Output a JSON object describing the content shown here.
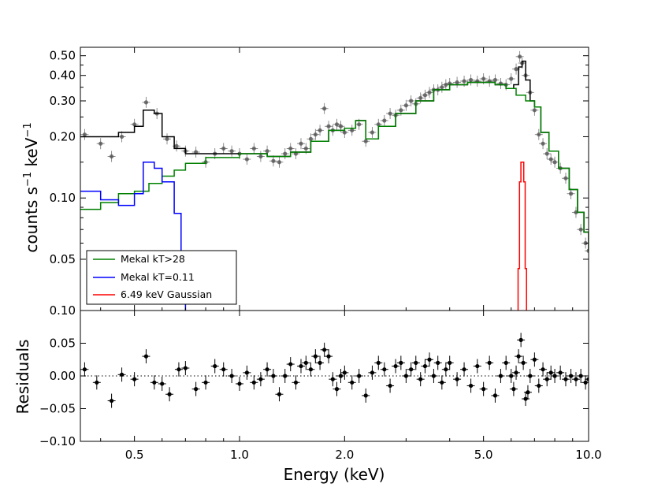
{
  "chart_data": {
    "type": "line",
    "xlabel": "Energy (keV)",
    "x_scale": "log",
    "xlim": [
      0.35,
      10.0
    ],
    "x_ticks": [
      {
        "value": 0.5,
        "label": "0.5"
      },
      {
        "value": 1.0,
        "label": "1.0"
      },
      {
        "value": 2.0,
        "label": "2.0"
      },
      {
        "value": 5.0,
        "label": "5.0"
      },
      {
        "value": 10.0,
        "label": "10.0"
      }
    ],
    "top_panel": {
      "ylabel": "counts s",
      "ylabel_sup1": "−1",
      "ylabel_mid": " keV",
      "ylabel_sup2": "−1",
      "y_scale": "log",
      "ylim": [
        0.028,
        0.55
      ],
      "y_ticks": [
        {
          "value": 0.5,
          "label": "0.50"
        },
        {
          "value": 0.4,
          "label": "0.40"
        },
        {
          "value": 0.3,
          "label": "0.30"
        },
        {
          "value": 0.2,
          "label": "0.20"
        },
        {
          "value": 0.1,
          "label": "0.10"
        },
        {
          "value": 0.05,
          "label": "0.05"
        }
      ],
      "bottom_tick_label": "0.10",
      "legend": {
        "position": "lower-left",
        "entries": [
          {
            "label": "Mekal kT>28",
            "color": "#008000"
          },
          {
            "label": "Mekal kT=0.11",
            "color": "#0000ff"
          },
          {
            "label": "6.49 keV Gaussian",
            "color": "#ff0000"
          }
        ]
      },
      "series": [
        {
          "name": "Total model",
          "color": "#000000",
          "kind": "step",
          "points": [
            [
              0.35,
              0.2
            ],
            [
              0.4,
              0.2
            ],
            [
              0.45,
              0.21
            ],
            [
              0.5,
              0.225
            ],
            [
              0.53,
              0.27
            ],
            [
              0.57,
              0.26
            ],
            [
              0.6,
              0.2
            ],
            [
              0.65,
              0.175
            ],
            [
              0.7,
              0.165
            ],
            [
              0.8,
              0.165
            ],
            [
              1.0,
              0.165
            ],
            [
              1.2,
              0.16
            ],
            [
              1.4,
              0.168
            ],
            [
              1.6,
              0.19
            ],
            [
              1.8,
              0.215
            ],
            [
              2.0,
              0.22
            ],
            [
              2.15,
              0.24
            ],
            [
              2.3,
              0.195
            ],
            [
              2.5,
              0.225
            ],
            [
              2.8,
              0.26
            ],
            [
              3.2,
              0.3
            ],
            [
              3.6,
              0.34
            ],
            [
              4.0,
              0.36
            ],
            [
              4.5,
              0.37
            ],
            [
              5.0,
              0.37
            ],
            [
              5.4,
              0.36
            ],
            [
              5.8,
              0.345
            ],
            [
              6.1,
              0.36
            ],
            [
              6.3,
              0.44
            ],
            [
              6.45,
              0.47
            ],
            [
              6.6,
              0.38
            ],
            [
              6.8,
              0.3
            ],
            [
              7.0,
              0.28
            ],
            [
              7.3,
              0.21
            ],
            [
              7.7,
              0.17
            ],
            [
              8.2,
              0.14
            ],
            [
              8.8,
              0.11
            ],
            [
              9.3,
              0.085
            ],
            [
              9.7,
              0.068
            ],
            [
              10.0,
              0.055
            ]
          ]
        },
        {
          "name": "Mekal kT>28",
          "color": "#008000",
          "kind": "step",
          "points": [
            [
              0.35,
              0.088
            ],
            [
              0.4,
              0.095
            ],
            [
              0.45,
              0.105
            ],
            [
              0.5,
              0.108
            ],
            [
              0.55,
              0.118
            ],
            [
              0.6,
              0.128
            ],
            [
              0.65,
              0.137
            ],
            [
              0.7,
              0.148
            ],
            [
              0.8,
              0.158
            ],
            [
              1.0,
              0.165
            ],
            [
              1.2,
              0.16
            ],
            [
              1.4,
              0.168
            ],
            [
              1.6,
              0.19
            ],
            [
              1.8,
              0.215
            ],
            [
              2.0,
              0.22
            ],
            [
              2.15,
              0.24
            ],
            [
              2.3,
              0.195
            ],
            [
              2.5,
              0.225
            ],
            [
              2.8,
              0.26
            ],
            [
              3.2,
              0.3
            ],
            [
              3.6,
              0.34
            ],
            [
              4.0,
              0.36
            ],
            [
              4.5,
              0.37
            ],
            [
              5.0,
              0.37
            ],
            [
              5.4,
              0.36
            ],
            [
              5.8,
              0.345
            ],
            [
              6.2,
              0.32
            ],
            [
              6.6,
              0.3
            ],
            [
              7.0,
              0.28
            ],
            [
              7.3,
              0.21
            ],
            [
              7.7,
              0.17
            ],
            [
              8.2,
              0.14
            ],
            [
              8.8,
              0.11
            ],
            [
              9.3,
              0.085
            ],
            [
              9.7,
              0.068
            ],
            [
              10.0,
              0.055
            ]
          ]
        },
        {
          "name": "Mekal kT=0.11",
          "color": "#0000ff",
          "kind": "step",
          "points": [
            [
              0.35,
              0.108
            ],
            [
              0.4,
              0.098
            ],
            [
              0.45,
              0.092
            ],
            [
              0.5,
              0.105
            ],
            [
              0.53,
              0.15
            ],
            [
              0.57,
              0.14
            ],
            [
              0.6,
              0.12
            ],
            [
              0.65,
              0.084
            ],
            [
              0.68,
              0.04
            ],
            [
              0.7,
              0.026
            ]
          ]
        },
        {
          "name": "6.49 keV Gaussian",
          "color": "#ff0000",
          "kind": "step",
          "points": [
            [
              6.2,
              0.026
            ],
            [
              6.28,
              0.045
            ],
            [
              6.34,
              0.12
            ],
            [
              6.4,
              0.15
            ],
            [
              6.46,
              0.15
            ],
            [
              6.52,
              0.12
            ],
            [
              6.58,
              0.045
            ],
            [
              6.64,
              0.026
            ]
          ]
        }
      ],
      "data_points": {
        "color": "#555555",
        "points": [
          [
            0.36,
            0.205
          ],
          [
            0.4,
            0.185
          ],
          [
            0.43,
            0.16
          ],
          [
            0.46,
            0.2
          ],
          [
            0.5,
            0.23
          ],
          [
            0.54,
            0.295
          ],
          [
            0.58,
            0.26
          ],
          [
            0.62,
            0.195
          ],
          [
            0.66,
            0.18
          ],
          [
            0.7,
            0.17
          ],
          [
            0.75,
            0.168
          ],
          [
            0.8,
            0.15
          ],
          [
            0.85,
            0.165
          ],
          [
            0.9,
            0.175
          ],
          [
            0.95,
            0.17
          ],
          [
            1.0,
            0.165
          ],
          [
            1.05,
            0.155
          ],
          [
            1.1,
            0.175
          ],
          [
            1.15,
            0.16
          ],
          [
            1.2,
            0.17
          ],
          [
            1.25,
            0.152
          ],
          [
            1.3,
            0.15
          ],
          [
            1.35,
            0.165
          ],
          [
            1.4,
            0.175
          ],
          [
            1.45,
            0.165
          ],
          [
            1.5,
            0.185
          ],
          [
            1.55,
            0.175
          ],
          [
            1.6,
            0.195
          ],
          [
            1.65,
            0.205
          ],
          [
            1.7,
            0.215
          ],
          [
            1.75,
            0.275
          ],
          [
            1.8,
            0.225
          ],
          [
            1.85,
            0.215
          ],
          [
            1.9,
            0.23
          ],
          [
            1.95,
            0.225
          ],
          [
            2.0,
            0.21
          ],
          [
            2.1,
            0.215
          ],
          [
            2.2,
            0.23
          ],
          [
            2.3,
            0.19
          ],
          [
            2.4,
            0.21
          ],
          [
            2.5,
            0.23
          ],
          [
            2.6,
            0.24
          ],
          [
            2.7,
            0.26
          ],
          [
            2.8,
            0.255
          ],
          [
            2.9,
            0.27
          ],
          [
            3.0,
            0.285
          ],
          [
            3.1,
            0.3
          ],
          [
            3.2,
            0.29
          ],
          [
            3.3,
            0.31
          ],
          [
            3.4,
            0.32
          ],
          [
            3.5,
            0.33
          ],
          [
            3.6,
            0.34
          ],
          [
            3.7,
            0.34
          ],
          [
            3.8,
            0.35
          ],
          [
            3.9,
            0.36
          ],
          [
            4.0,
            0.365
          ],
          [
            4.2,
            0.37
          ],
          [
            4.4,
            0.375
          ],
          [
            4.6,
            0.38
          ],
          [
            4.8,
            0.375
          ],
          [
            5.0,
            0.385
          ],
          [
            5.2,
            0.375
          ],
          [
            5.4,
            0.38
          ],
          [
            5.6,
            0.365
          ],
          [
            5.8,
            0.36
          ],
          [
            6.0,
            0.385
          ],
          [
            6.2,
            0.43
          ],
          [
            6.35,
            0.495
          ],
          [
            6.45,
            0.46
          ],
          [
            6.6,
            0.4
          ],
          [
            6.8,
            0.33
          ],
          [
            7.0,
            0.27
          ],
          [
            7.2,
            0.205
          ],
          [
            7.4,
            0.185
          ],
          [
            7.6,
            0.165
          ],
          [
            7.8,
            0.155
          ],
          [
            8.0,
            0.15
          ],
          [
            8.3,
            0.14
          ],
          [
            8.6,
            0.125
          ],
          [
            8.9,
            0.105
          ],
          [
            9.2,
            0.085
          ],
          [
            9.5,
            0.07
          ],
          [
            9.8,
            0.06
          ],
          [
            10.0,
            0.055
          ]
        ]
      }
    },
    "bottom_panel": {
      "ylabel": "Residuals",
      "ylim": [
        -0.1,
        0.1
      ],
      "y_ticks": [
        {
          "value": 0.05,
          "label": "0.05"
        },
        {
          "value": 0.0,
          "label": "0.00"
        },
        {
          "value": -0.05,
          "label": "−0.05"
        },
        {
          "value": -0.1,
          "label": "−0.10"
        }
      ],
      "zero_line": "dotted",
      "points": [
        [
          0.36,
          0.01
        ],
        [
          0.39,
          -0.01
        ],
        [
          0.43,
          -0.038
        ],
        [
          0.46,
          0.002
        ],
        [
          0.5,
          -0.005
        ],
        [
          0.54,
          0.03
        ],
        [
          0.57,
          -0.01
        ],
        [
          0.6,
          -0.012
        ],
        [
          0.63,
          -0.028
        ],
        [
          0.67,
          0.01
        ],
        [
          0.7,
          0.012
        ],
        [
          0.75,
          -0.02
        ],
        [
          0.8,
          -0.01
        ],
        [
          0.85,
          0.015
        ],
        [
          0.9,
          0.01
        ],
        [
          0.95,
          0.0
        ],
        [
          1.0,
          -0.012
        ],
        [
          1.05,
          0.005
        ],
        [
          1.1,
          -0.01
        ],
        [
          1.15,
          -0.005
        ],
        [
          1.2,
          0.01
        ],
        [
          1.25,
          0.0
        ],
        [
          1.3,
          -0.028
        ],
        [
          1.35,
          0.0
        ],
        [
          1.4,
          0.018
        ],
        [
          1.45,
          -0.01
        ],
        [
          1.5,
          0.015
        ],
        [
          1.55,
          0.02
        ],
        [
          1.6,
          0.01
        ],
        [
          1.65,
          0.03
        ],
        [
          1.7,
          0.02
        ],
        [
          1.75,
          0.04
        ],
        [
          1.8,
          0.03
        ],
        [
          1.85,
          -0.005
        ],
        [
          1.9,
          -0.02
        ],
        [
          1.95,
          0.0
        ],
        [
          2.0,
          0.005
        ],
        [
          2.1,
          -0.01
        ],
        [
          2.2,
          0.0
        ],
        [
          2.3,
          -0.03
        ],
        [
          2.4,
          0.005
        ],
        [
          2.5,
          0.02
        ],
        [
          2.6,
          0.01
        ],
        [
          2.7,
          -0.015
        ],
        [
          2.8,
          0.015
        ],
        [
          2.9,
          0.02
        ],
        [
          3.0,
          0.0
        ],
        [
          3.1,
          0.01
        ],
        [
          3.2,
          0.02
        ],
        [
          3.3,
          -0.005
        ],
        [
          3.4,
          0.015
        ],
        [
          3.5,
          0.025
        ],
        [
          3.6,
          0.0
        ],
        [
          3.7,
          0.02
        ],
        [
          3.8,
          -0.01
        ],
        [
          3.9,
          0.01
        ],
        [
          4.0,
          0.02
        ],
        [
          4.2,
          -0.005
        ],
        [
          4.4,
          0.01
        ],
        [
          4.6,
          -0.015
        ],
        [
          4.8,
          0.015
        ],
        [
          5.0,
          -0.02
        ],
        [
          5.2,
          0.02
        ],
        [
          5.4,
          -0.03
        ],
        [
          5.6,
          0.0
        ],
        [
          5.8,
          0.02
        ],
        [
          6.0,
          0.0
        ],
        [
          6.1,
          -0.02
        ],
        [
          6.2,
          0.005
        ],
        [
          6.3,
          0.03
        ],
        [
          6.4,
          0.055
        ],
        [
          6.5,
          0.02
        ],
        [
          6.6,
          -0.035
        ],
        [
          6.7,
          -0.025
        ],
        [
          6.8,
          0.0
        ],
        [
          7.0,
          0.025
        ],
        [
          7.2,
          -0.015
        ],
        [
          7.4,
          0.01
        ],
        [
          7.6,
          -0.005
        ],
        [
          7.8,
          0.005
        ],
        [
          8.0,
          0.0
        ],
        [
          8.3,
          0.005
        ],
        [
          8.6,
          -0.005
        ],
        [
          8.9,
          0.0
        ],
        [
          9.2,
          -0.005
        ],
        [
          9.5,
          0.0
        ],
        [
          9.8,
          -0.01
        ],
        [
          10.0,
          -0.005
        ]
      ]
    }
  }
}
